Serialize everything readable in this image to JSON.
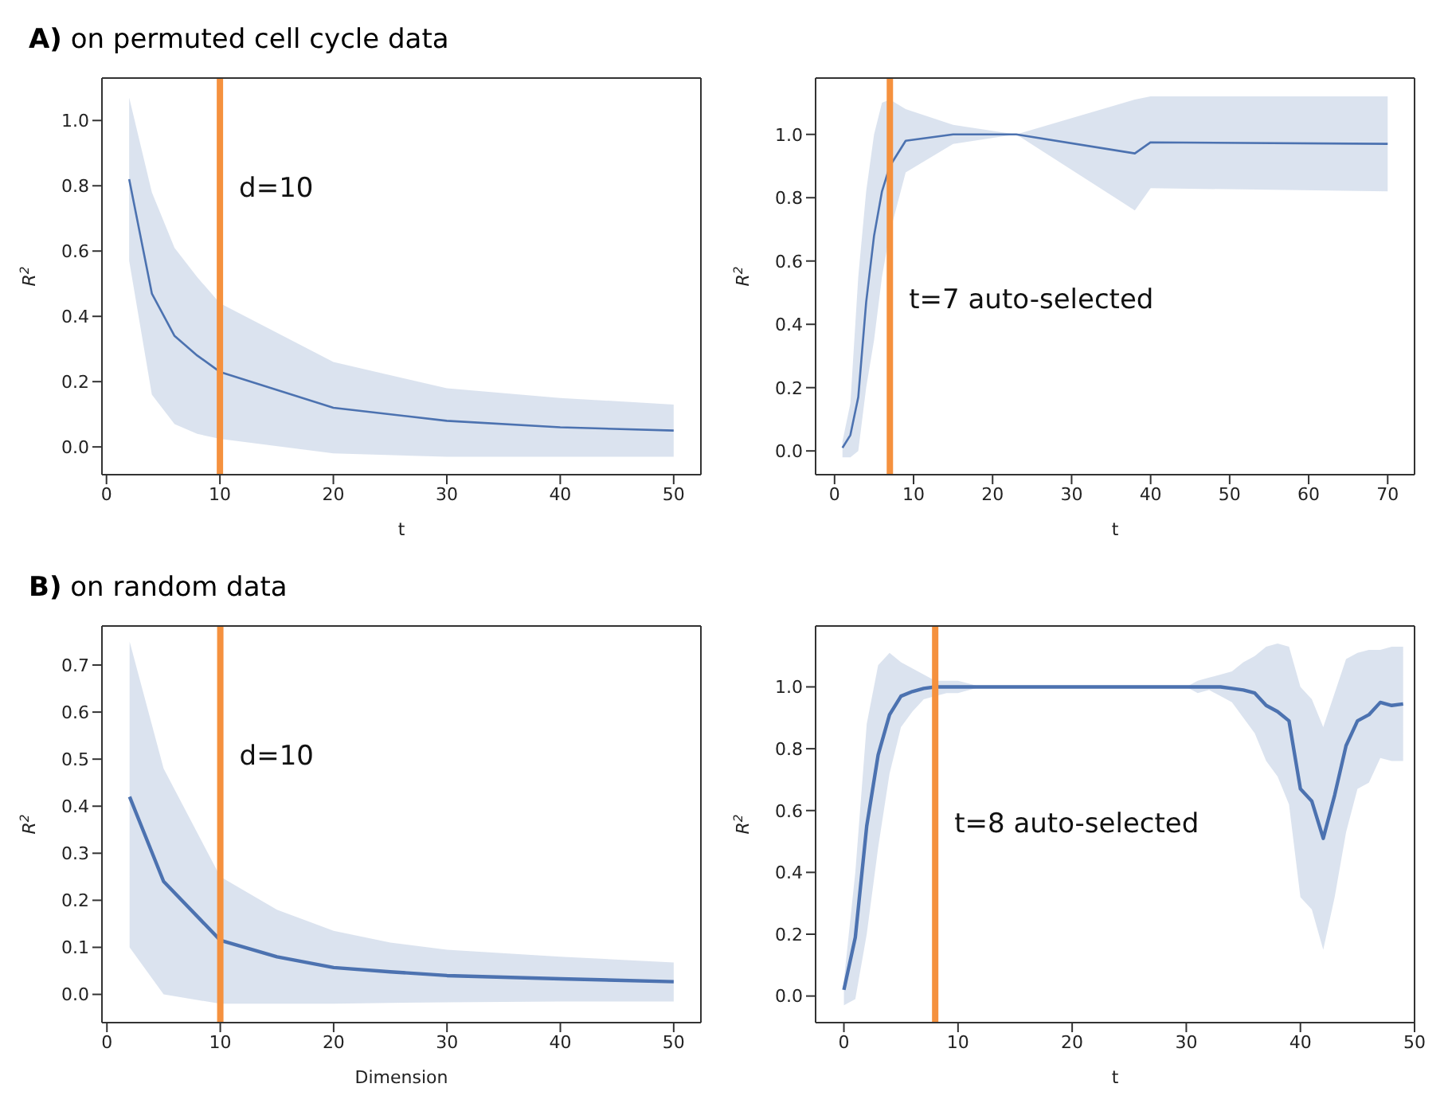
{
  "chart_data": [
    {
      "type": "line",
      "title": "A) on permuted cell cycle data",
      "xlabel": "t",
      "ylabel": "R$^{2}$",
      "x": [
        2,
        4,
        6,
        8,
        10,
        20,
        30,
        40,
        50
      ],
      "series": [
        {
          "color": "#4c72b0",
          "values": [
            0.82,
            0.47,
            0.34,
            0.28,
            0.23,
            0.12,
            0.08,
            0.06,
            0.05
          ],
          "lower": [
            0.57,
            0.16,
            0.07,
            0.04,
            0.025,
            -0.02,
            -0.03,
            -0.03,
            -0.03
          ],
          "upper": [
            1.07,
            0.78,
            0.61,
            0.52,
            0.44,
            0.26,
            0.18,
            0.15,
            0.13
          ]
        }
      ],
      "xlim": [
        -0.4,
        52.4
      ],
      "ylim": [
        -0.085,
        1.13
      ],
      "xticks": [
        0,
        10,
        20,
        30,
        40,
        50
      ],
      "yticks": [
        {
          "value": 0,
          "label": "0.0"
        },
        {
          "value": 0.2,
          "label": "0.2"
        },
        {
          "value": 0.4,
          "label": "0.4"
        },
        {
          "value": 0.6,
          "label": "0.6"
        },
        {
          "value": 0.8,
          "label": "0.8"
        },
        {
          "value": 1,
          "label": "1.0"
        }
      ],
      "ref_lines": [
        {
          "axis": "x",
          "value": 10,
          "label": "d=10",
          "color": "#f5913e"
        }
      ],
      "grid": false,
      "legend": false,
      "marker": "none"
    },
    {
      "type": "line",
      "xlabel": "t",
      "ylabel": "R$^{2}$",
      "x": [
        1,
        2,
        3,
        4,
        5,
        6,
        7,
        9,
        15,
        23,
        38,
        40,
        70
      ],
      "series": [
        {
          "color": "#4c72b0",
          "values": [
            0.01,
            0.05,
            0.17,
            0.47,
            0.68,
            0.82,
            0.9,
            0.98,
            1.0,
            1.0,
            0.94,
            0.975,
            0.97
          ],
          "lower": [
            -0.02,
            -0.02,
            0.0,
            0.2,
            0.35,
            0.55,
            0.69,
            0.88,
            0.97,
            1.0,
            0.76,
            0.83,
            0.82
          ],
          "upper": [
            0.03,
            0.15,
            0.55,
            0.82,
            1.0,
            1.1,
            1.11,
            1.08,
            1.03,
            1.0,
            1.11,
            1.12,
            1.12
          ]
        }
      ],
      "xlim": [
        -2.4,
        73.4
      ],
      "ylim": [
        -0.075,
        1.178
      ],
      "xticks": [
        0,
        10,
        20,
        30,
        40,
        50,
        60,
        70
      ],
      "yticks": [
        {
          "value": 0,
          "label": "0.0"
        },
        {
          "value": 0.2,
          "label": "0.2"
        },
        {
          "value": 0.4,
          "label": "0.4"
        },
        {
          "value": 0.6,
          "label": "0.6"
        },
        {
          "value": 0.8,
          "label": "0.8"
        },
        {
          "value": 1,
          "label": "1.0"
        }
      ],
      "ref_lines": [
        {
          "axis": "x",
          "value": 7,
          "label": "t=7 auto-selected",
          "color": "#f5913e"
        }
      ],
      "grid": false,
      "legend": false,
      "marker": "none"
    },
    {
      "type": "line",
      "title": "B) on random data",
      "xlabel": "Dimension",
      "ylabel": "R$^{2}$",
      "x": [
        2,
        5,
        10,
        15,
        20,
        25,
        30,
        40,
        50
      ],
      "series": [
        {
          "color": "#4c72b0",
          "values": [
            0.42,
            0.24,
            0.115,
            0.08,
            0.057,
            0.048,
            0.04,
            0.033,
            0.027
          ],
          "lower": [
            0.1,
            0.0,
            -0.02,
            -0.02,
            -0.02,
            -0.018,
            -0.017,
            -0.015,
            -0.015
          ],
          "upper": [
            0.75,
            0.48,
            0.25,
            0.18,
            0.135,
            0.11,
            0.095,
            0.08,
            0.068
          ]
        }
      ],
      "xlim": [
        -0.44,
        52.4
      ],
      "ylim": [
        -0.06,
        0.783
      ],
      "xticks": [
        0,
        10,
        20,
        30,
        40,
        50
      ],
      "yticks": [
        {
          "value": 0,
          "label": "0.0"
        },
        {
          "value": 0.1,
          "label": "0.1"
        },
        {
          "value": 0.2,
          "label": "0.2"
        },
        {
          "value": 0.3,
          "label": "0.3"
        },
        {
          "value": 0.4,
          "label": "0.4"
        },
        {
          "value": 0.5,
          "label": "0.5"
        },
        {
          "value": 0.6,
          "label": "0.6"
        },
        {
          "value": 0.7,
          "label": "0.7"
        }
      ],
      "ref_lines": [
        {
          "axis": "x",
          "value": 10,
          "label": "d=10",
          "color": "#f5913e"
        }
      ],
      "grid": false,
      "legend": false,
      "marker": "none"
    },
    {
      "type": "line",
      "xlabel": "t",
      "ylabel": "R$^{2}$",
      "x": [
        0,
        1,
        2,
        3,
        4,
        5,
        6,
        7,
        8,
        9,
        10,
        11,
        12,
        15,
        20,
        25,
        30,
        31,
        32,
        33,
        34,
        35,
        36,
        37,
        38,
        39,
        40,
        41,
        42,
        43,
        44,
        45,
        46,
        47,
        48,
        49
      ],
      "series": [
        {
          "color": "#4c72b0",
          "values": [
            0.02,
            0.19,
            0.55,
            0.78,
            0.91,
            0.97,
            0.985,
            0.995,
            1.0,
            1.0,
            1.0,
            1.0,
            1.0,
            1.0,
            1.0,
            1.0,
            1.0,
            1.0,
            1.0,
            1.0,
            0.995,
            0.99,
            0.98,
            0.94,
            0.92,
            0.89,
            0.67,
            0.63,
            0.51,
            0.65,
            0.81,
            0.89,
            0.91,
            0.95,
            0.94,
            0.945
          ],
          "lower": [
            -0.03,
            -0.01,
            0.2,
            0.48,
            0.72,
            0.87,
            0.92,
            0.96,
            0.97,
            0.98,
            0.98,
            0.99,
            1.0,
            1.0,
            1.0,
            1.0,
            1.0,
            0.98,
            0.99,
            0.97,
            0.95,
            0.9,
            0.85,
            0.76,
            0.71,
            0.62,
            0.32,
            0.28,
            0.15,
            0.32,
            0.53,
            0.67,
            0.69,
            0.77,
            0.76,
            0.76
          ],
          "upper": [
            0.05,
            0.4,
            0.88,
            1.07,
            1.11,
            1.08,
            1.06,
            1.04,
            1.02,
            1.02,
            1.02,
            1.01,
            1.0,
            1.0,
            1.0,
            1.0,
            1.0,
            1.02,
            1.03,
            1.04,
            1.05,
            1.08,
            1.1,
            1.13,
            1.14,
            1.13,
            1.0,
            0.96,
            0.87,
            0.98,
            1.09,
            1.11,
            1.12,
            1.12,
            1.13,
            1.13
          ]
        }
      ],
      "xlim": [
        -2.48,
        50
      ],
      "ylim": [
        -0.086,
        1.197
      ],
      "xticks": [
        0,
        10,
        20,
        30,
        40,
        50
      ],
      "yticks": [
        {
          "value": 0,
          "label": "0.0"
        },
        {
          "value": 0.2,
          "label": "0.2"
        },
        {
          "value": 0.4,
          "label": "0.4"
        },
        {
          "value": 0.6,
          "label": "0.6"
        },
        {
          "value": 0.8,
          "label": "0.8"
        },
        {
          "value": 1,
          "label": "1.0"
        }
      ],
      "ref_lines": [
        {
          "axis": "x",
          "value": 8,
          "label": "t=8 auto-selected",
          "color": "#f5913e"
        }
      ],
      "grid": false,
      "legend": false,
      "marker": "none"
    }
  ]
}
